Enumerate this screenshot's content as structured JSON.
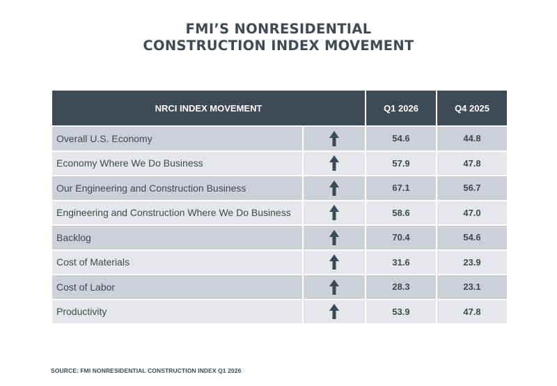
{
  "title_line1": "FMI’S NONRESIDENTIAL",
  "title_line2": "CONSTRUCTION INDEX MOVEMENT",
  "source": "SOURCE: FMI NONRESIDENTIAL CONSTRUCTION INDEX Q1 2026",
  "colors": {
    "header": "#3d4955",
    "row_dark": "#cdd0d6",
    "row_light": "#e6e7eb",
    "arrow": "#3d4955"
  },
  "chart_data": {
    "type": "table",
    "title": "FMI’S NONRESIDENTIAL CONSTRUCTION INDEX MOVEMENT",
    "columns": [
      "NRCI INDEX MOVEMENT",
      "Q1 2026",
      "Q4 2025"
    ],
    "rows": [
      {
        "label": "Overall U.S. Economy",
        "direction": "up",
        "q1_2026": "54.6",
        "q4_2025": "44.8"
      },
      {
        "label": "Economy Where We Do Business",
        "direction": "up",
        "q1_2026": "57.9",
        "q4_2025": "47.8"
      },
      {
        "label": "Our Engineering and Construction Business",
        "direction": "up",
        "q1_2026": "67.1",
        "q4_2025": "56.7"
      },
      {
        "label": "Engineering and Construction Where We Do Business",
        "direction": "up",
        "q1_2026": "58.6",
        "q4_2025": "47.0"
      },
      {
        "label": "Backlog",
        "direction": "up",
        "q1_2026": "70.4",
        "q4_2025": "54.6"
      },
      {
        "label": "Cost of Materials",
        "direction": "up",
        "q1_2026": "31.6",
        "q4_2025": "23.9"
      },
      {
        "label": "Cost of Labor",
        "direction": "up",
        "q1_2026": "28.3",
        "q4_2025": "23.1"
      },
      {
        "label": "Productivity",
        "direction": "up",
        "q1_2026": "53.9",
        "q4_2025": "47.8"
      }
    ]
  }
}
